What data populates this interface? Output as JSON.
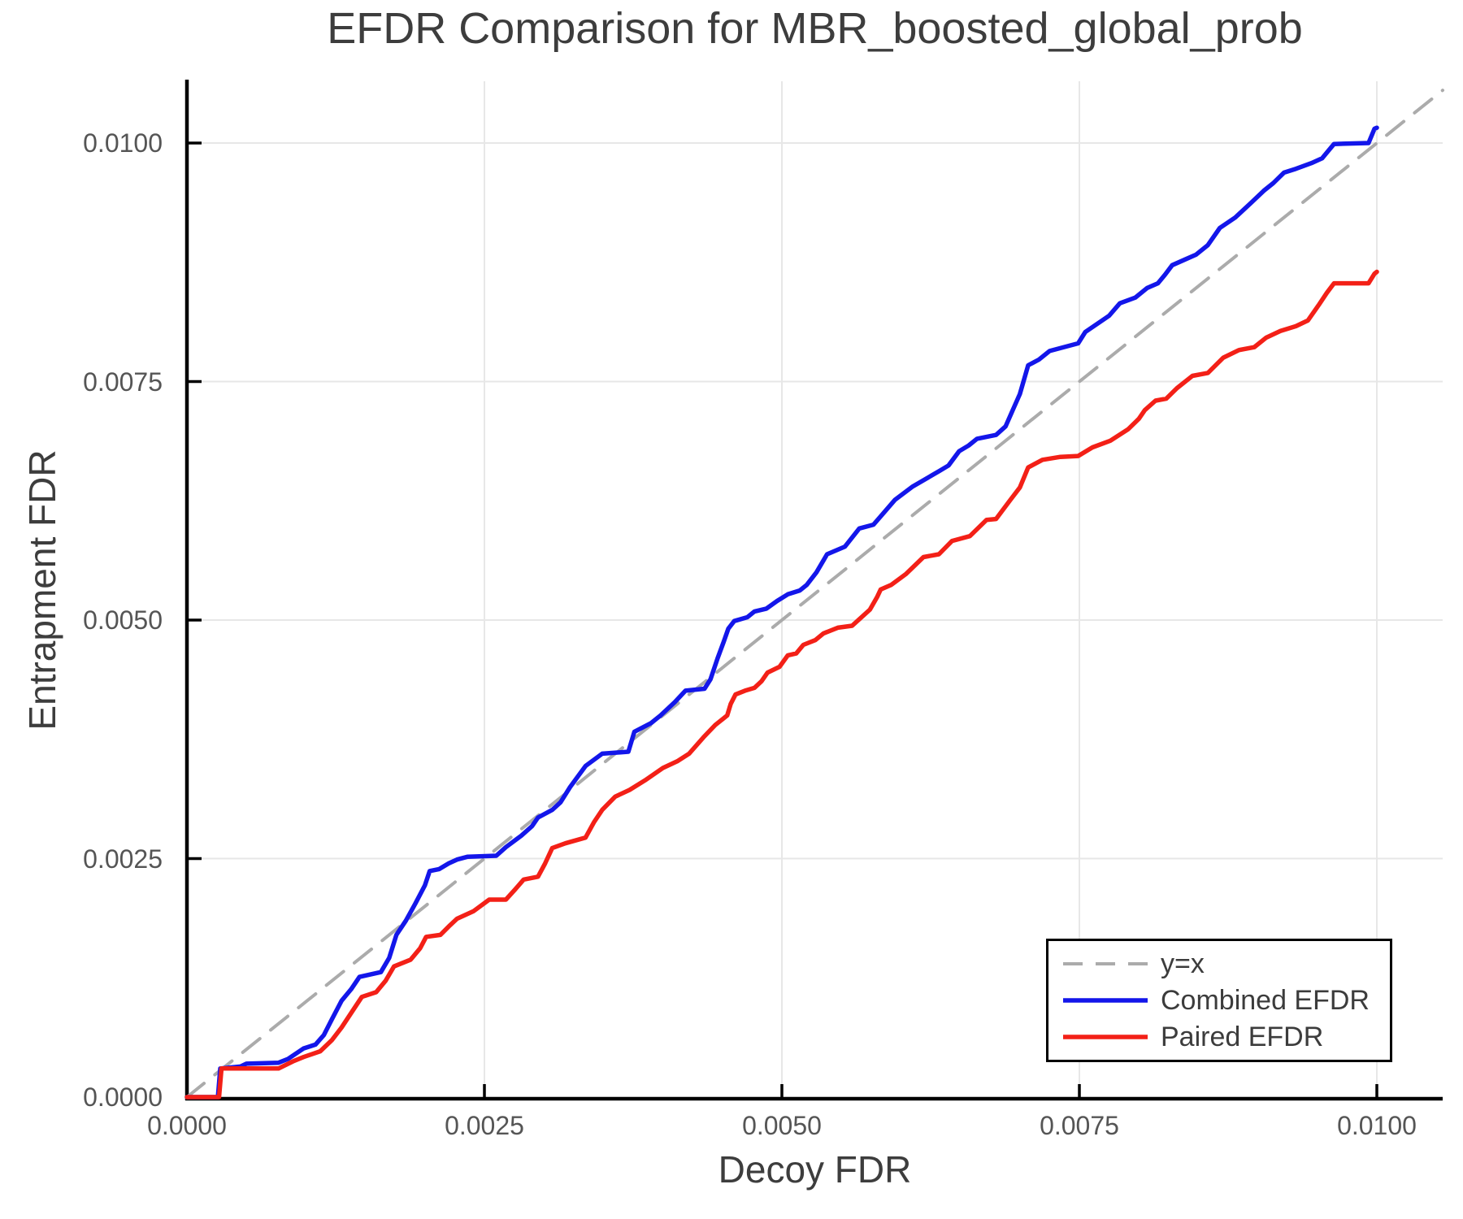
{
  "chart_data": {
    "type": "line",
    "title": "EFDR Comparison for MBR_boosted_global_prob",
    "xlabel": "Decoy FDR",
    "ylabel": "Entrapment FDR",
    "xlim": [
      0,
      0.01055
    ],
    "ylim": [
      0,
      0.01065
    ],
    "grid": true,
    "x_axis": {
      "tick_values": [
        0.0,
        0.0025,
        0.005,
        0.0075,
        0.01
      ],
      "tick_labels": [
        "0.0000",
        "0.0025",
        "0.0050",
        "0.0075",
        "0.0100"
      ]
    },
    "y_axis": {
      "tick_values": [
        0.0,
        0.0025,
        0.005,
        0.0075,
        0.01
      ],
      "tick_labels": [
        "0.0000",
        "0.0025",
        "0.0050",
        "0.0075",
        "0.0100"
      ]
    },
    "legend": {
      "position": "bottom-right",
      "entries": [
        {
          "label": "y=x",
          "color": "#ababab",
          "dash": true
        },
        {
          "label": "Combined EFDR",
          "color": "#1316ea",
          "dash": false
        },
        {
          "label": "Paired EFDR",
          "color": "#f32017",
          "dash": false
        }
      ]
    },
    "colors": {
      "grid": "#e7e7e7",
      "axis": "#000000",
      "diagonal": "#ababab",
      "combined": "#1316ea",
      "paired": "#f32017",
      "title_text": "#3d3d3d",
      "tick_text": "#555555"
    },
    "series": [
      {
        "name": "y=x",
        "style": "dashed",
        "color": "#ababab",
        "points": [
          [
            0.0,
            0.0
          ],
          [
            0.010553,
            0.010553
          ]
        ]
      },
      {
        "name": "Combined EFDR",
        "style": "solid",
        "color": "#1316ea",
        "points": [
          [
            0.0,
            0.0
          ],
          [
            0.00026,
            0.0
          ],
          [
            0.00028,
            0.0003
          ],
          [
            0.00045,
            0.00032
          ],
          [
            0.0005,
            0.00035
          ],
          [
            0.00077,
            0.00036
          ],
          [
            0.00085,
            0.0004
          ],
          [
            0.00098,
            0.00051
          ],
          [
            0.00108,
            0.00055
          ],
          [
            0.00115,
            0.00065
          ],
          [
            0.00122,
            0.00082
          ],
          [
            0.0013,
            0.00101
          ],
          [
            0.00138,
            0.00113
          ],
          [
            0.00145,
            0.00126
          ],
          [
            0.00163,
            0.00131
          ],
          [
            0.0017,
            0.00146
          ],
          [
            0.00176,
            0.0017
          ],
          [
            0.00184,
            0.00185
          ],
          [
            0.00192,
            0.00203
          ],
          [
            0.002,
            0.00222
          ],
          [
            0.00204,
            0.00237
          ],
          [
            0.00212,
            0.00239
          ],
          [
            0.0022,
            0.00245
          ],
          [
            0.00227,
            0.00249
          ],
          [
            0.00236,
            0.00252
          ],
          [
            0.0026,
            0.00253
          ],
          [
            0.00268,
            0.00262
          ],
          [
            0.00281,
            0.00274
          ],
          [
            0.0029,
            0.00284
          ],
          [
            0.00295,
            0.00293
          ],
          [
            0.00307,
            0.00301
          ],
          [
            0.00314,
            0.00309
          ],
          [
            0.00322,
            0.00325
          ],
          [
            0.00335,
            0.00347
          ],
          [
            0.00349,
            0.0036
          ],
          [
            0.00371,
            0.00362
          ],
          [
            0.00376,
            0.00383
          ],
          [
            0.0039,
            0.00392
          ],
          [
            0.00398,
            0.004
          ],
          [
            0.0041,
            0.00414
          ],
          [
            0.00419,
            0.00426
          ],
          [
            0.00435,
            0.00428
          ],
          [
            0.0044,
            0.00438
          ],
          [
            0.00446,
            0.0046
          ],
          [
            0.00451,
            0.00477
          ],
          [
            0.00455,
            0.00491
          ],
          [
            0.0046,
            0.00499
          ],
          [
            0.00471,
            0.00503
          ],
          [
            0.00477,
            0.00509
          ],
          [
            0.00487,
            0.00512
          ],
          [
            0.00496,
            0.0052
          ],
          [
            0.00505,
            0.00527
          ],
          [
            0.00515,
            0.00531
          ],
          [
            0.00521,
            0.00537
          ],
          [
            0.00529,
            0.0055
          ],
          [
            0.00538,
            0.00569
          ],
          [
            0.00553,
            0.00577
          ],
          [
            0.00565,
            0.00596
          ],
          [
            0.00577,
            0.006
          ],
          [
            0.00595,
            0.00626
          ],
          [
            0.0061,
            0.0064
          ],
          [
            0.00632,
            0.00656
          ],
          [
            0.0064,
            0.00662
          ],
          [
            0.00649,
            0.00677
          ],
          [
            0.00657,
            0.00683
          ],
          [
            0.00664,
            0.0069
          ],
          [
            0.0068,
            0.00694
          ],
          [
            0.00688,
            0.00703
          ],
          [
            0.00694,
            0.0072
          ],
          [
            0.007,
            0.00737
          ],
          [
            0.00707,
            0.00767
          ],
          [
            0.00716,
            0.00773
          ],
          [
            0.00725,
            0.00782
          ],
          [
            0.00749,
            0.0079
          ],
          [
            0.00755,
            0.00802
          ],
          [
            0.00775,
            0.00819
          ],
          [
            0.00784,
            0.00832
          ],
          [
            0.00797,
            0.00838
          ],
          [
            0.00807,
            0.00848
          ],
          [
            0.00816,
            0.00853
          ],
          [
            0.00822,
            0.00862
          ],
          [
            0.00828,
            0.00872
          ],
          [
            0.00839,
            0.00878
          ],
          [
            0.00848,
            0.00883
          ],
          [
            0.00858,
            0.00893
          ],
          [
            0.00868,
            0.00911
          ],
          [
            0.00881,
            0.00922
          ],
          [
            0.00894,
            0.00937
          ],
          [
            0.00905,
            0.0095
          ],
          [
            0.00913,
            0.00958
          ],
          [
            0.00922,
            0.00969
          ],
          [
            0.00932,
            0.00973
          ],
          [
            0.00945,
            0.00979
          ],
          [
            0.00954,
            0.00984
          ],
          [
            0.0096,
            0.00993
          ],
          [
            0.00964,
            0.00999
          ],
          [
            0.00993,
            0.01
          ],
          [
            0.00998,
            0.01015
          ],
          [
            0.01,
            0.01016
          ]
        ]
      },
      {
        "name": "Paired EFDR",
        "style": "solid",
        "color": "#f32017",
        "points": [
          [
            0.0,
            0.0
          ],
          [
            0.00027,
            0.0
          ],
          [
            0.00029,
            0.0003
          ],
          [
            0.00077,
            0.0003
          ],
          [
            0.0009,
            0.00038
          ],
          [
            0.00098,
            0.00042
          ],
          [
            0.00112,
            0.00048
          ],
          [
            0.00122,
            0.0006
          ],
          [
            0.0013,
            0.00073
          ],
          [
            0.00139,
            0.0009
          ],
          [
            0.00147,
            0.00105
          ],
          [
            0.00159,
            0.0011
          ],
          [
            0.00167,
            0.00122
          ],
          [
            0.00174,
            0.00137
          ],
          [
            0.00188,
            0.00144
          ],
          [
            0.00196,
            0.00156
          ],
          [
            0.00201,
            0.00168
          ],
          [
            0.00213,
            0.0017
          ],
          [
            0.00221,
            0.0018
          ],
          [
            0.00227,
            0.00187
          ],
          [
            0.00241,
            0.00195
          ],
          [
            0.00254,
            0.00207
          ],
          [
            0.00268,
            0.00207
          ],
          [
            0.00276,
            0.00218
          ],
          [
            0.00283,
            0.00228
          ],
          [
            0.00295,
            0.00231
          ],
          [
            0.00301,
            0.00245
          ],
          [
            0.00307,
            0.00261
          ],
          [
            0.00318,
            0.00266
          ],
          [
            0.00335,
            0.00272
          ],
          [
            0.00342,
            0.00288
          ],
          [
            0.00349,
            0.00301
          ],
          [
            0.0036,
            0.00315
          ],
          [
            0.00372,
            0.00322
          ],
          [
            0.00385,
            0.00332
          ],
          [
            0.004,
            0.00345
          ],
          [
            0.00412,
            0.00352
          ],
          [
            0.00422,
            0.0036
          ],
          [
            0.00434,
            0.00377
          ],
          [
            0.00444,
            0.0039
          ],
          [
            0.00454,
            0.004
          ],
          [
            0.00457,
            0.00412
          ],
          [
            0.00461,
            0.00422
          ],
          [
            0.00469,
            0.00426
          ],
          [
            0.00477,
            0.00429
          ],
          [
            0.00483,
            0.00436
          ],
          [
            0.00488,
            0.00445
          ],
          [
            0.00498,
            0.00451
          ],
          [
            0.00505,
            0.00463
          ],
          [
            0.00512,
            0.00465
          ],
          [
            0.00518,
            0.00474
          ],
          [
            0.00528,
            0.00479
          ],
          [
            0.00535,
            0.00486
          ],
          [
            0.00547,
            0.00492
          ],
          [
            0.00559,
            0.00494
          ],
          [
            0.00574,
            0.00511
          ],
          [
            0.0058,
            0.00524
          ],
          [
            0.00583,
            0.00532
          ],
          [
            0.00592,
            0.00537
          ],
          [
            0.00604,
            0.00548
          ],
          [
            0.00619,
            0.00566
          ],
          [
            0.00632,
            0.00569
          ],
          [
            0.00643,
            0.00583
          ],
          [
            0.00658,
            0.00588
          ],
          [
            0.00672,
            0.00605
          ],
          [
            0.0068,
            0.00606
          ],
          [
            0.00692,
            0.00626
          ],
          [
            0.007,
            0.00639
          ],
          [
            0.00707,
            0.0066
          ],
          [
            0.00719,
            0.00668
          ],
          [
            0.00734,
            0.00671
          ],
          [
            0.00749,
            0.00672
          ],
          [
            0.00761,
            0.00681
          ],
          [
            0.00776,
            0.00688
          ],
          [
            0.00791,
            0.007
          ],
          [
            0.008,
            0.00711
          ],
          [
            0.00805,
            0.0072
          ],
          [
            0.00814,
            0.0073
          ],
          [
            0.00823,
            0.00732
          ],
          [
            0.00832,
            0.00743
          ],
          [
            0.00845,
            0.00756
          ],
          [
            0.00858,
            0.00759
          ],
          [
            0.00871,
            0.00775
          ],
          [
            0.00884,
            0.00783
          ],
          [
            0.00897,
            0.00786
          ],
          [
            0.00907,
            0.00796
          ],
          [
            0.00919,
            0.00803
          ],
          [
            0.00932,
            0.00808
          ],
          [
            0.00942,
            0.00814
          ],
          [
            0.00951,
            0.0083
          ],
          [
            0.00958,
            0.00843
          ],
          [
            0.00964,
            0.00853
          ],
          [
            0.00993,
            0.00853
          ],
          [
            0.00998,
            0.00863
          ],
          [
            0.01,
            0.00865
          ]
        ]
      }
    ]
  }
}
